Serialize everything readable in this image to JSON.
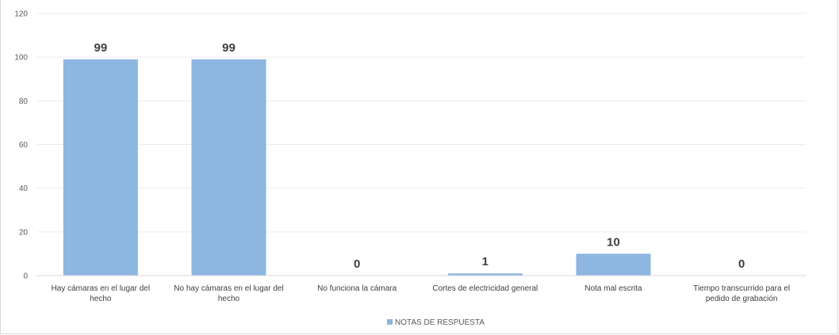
{
  "chart_data": {
    "type": "bar",
    "categories": [
      [
        "Hay cámaras en el lugar del",
        "hecho"
      ],
      [
        "No hay cámaras en el lugar del",
        "hecho"
      ],
      [
        "No funciona la cámara"
      ],
      [
        "Cortes de electricidad general"
      ],
      [
        "Nota mal escrita"
      ],
      [
        "Tiempo transcurrido para el",
        "pedido de grabación"
      ]
    ],
    "series": [
      {
        "name": "NOTAS DE RESPUESTA",
        "values": [
          99,
          99,
          0,
          1,
          10,
          0
        ],
        "color": "#8DB6E1"
      }
    ],
    "data_labels": [
      "99",
      "99",
      "0",
      "1",
      "10",
      "0"
    ],
    "ylim": [
      0,
      120
    ],
    "yticks": [
      "0",
      "20",
      "40",
      "60",
      "80",
      "100",
      "120"
    ],
    "grid": true,
    "gridline_color": "#ececec",
    "legend_position": "bottom"
  }
}
